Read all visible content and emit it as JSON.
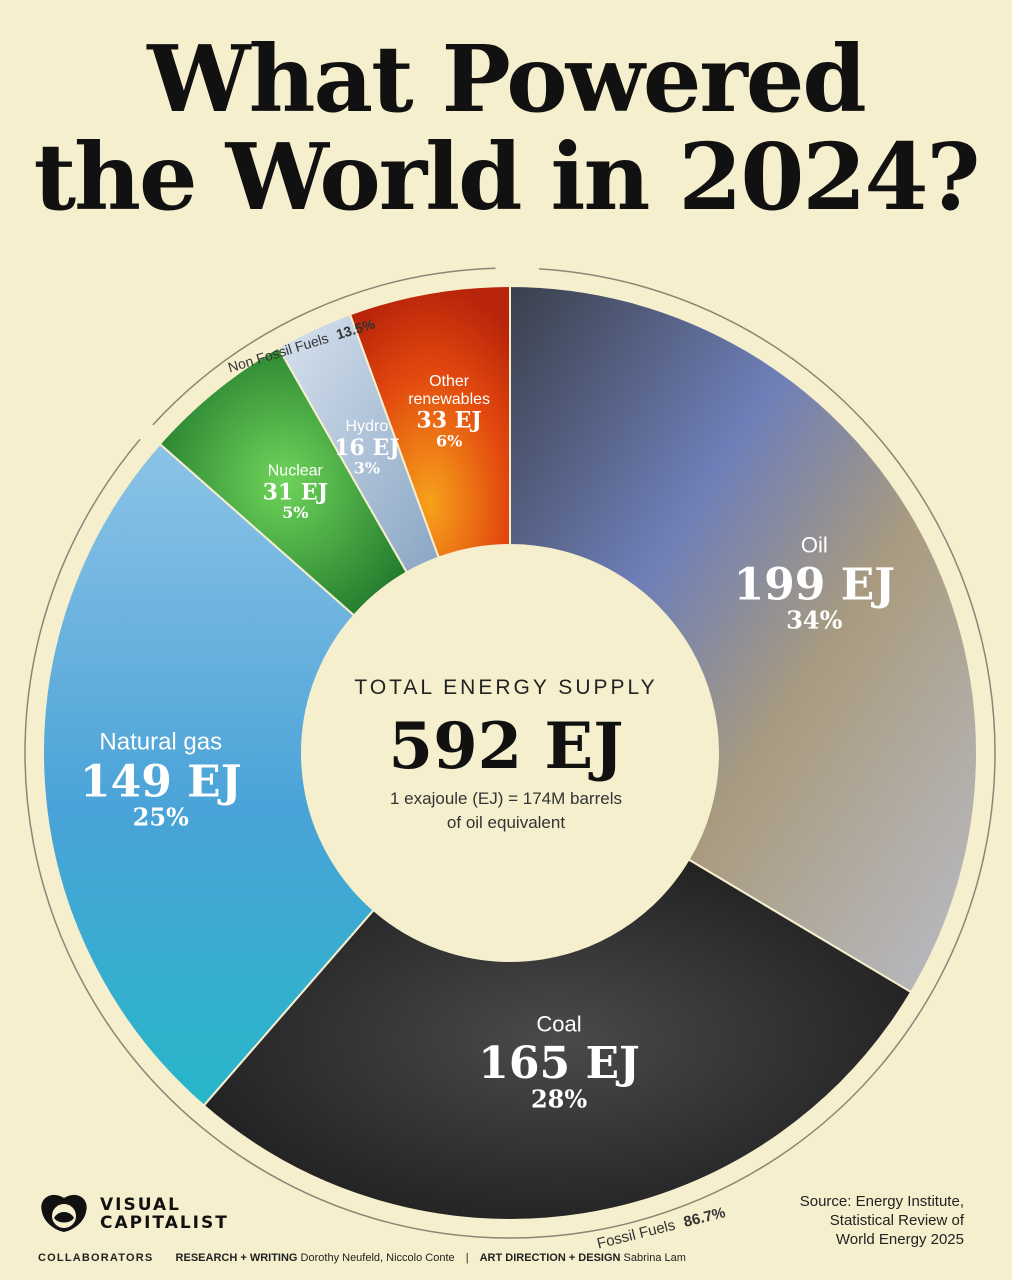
{
  "title": {
    "line1": "What Powered",
    "line2": "the World in 2024?"
  },
  "center": {
    "heading": "TOTAL ENERGY SUPPLY",
    "total": "592 EJ",
    "note_line1": "1 exajoule (EJ) = 174M barrels",
    "note_line2": "of oil equivalent"
  },
  "groups": {
    "non_fossil": {
      "label": "Non Fossil Fuels",
      "value": "13.5%"
    },
    "fossil": {
      "label": "Fossil Fuels",
      "value": "86.7%"
    }
  },
  "chart_data": {
    "type": "pie",
    "title": "What Powered the World in 2024?",
    "unit": "EJ",
    "total": 592,
    "slices": [
      {
        "name": "Oil",
        "value": 199,
        "value_label": "199 EJ",
        "percent_label": "34%",
        "color": "#8e8fa8"
      },
      {
        "name": "Coal",
        "value": 165,
        "value_label": "165 EJ",
        "percent_label": "28%",
        "color": "#2b2b2b"
      },
      {
        "name": "Natural gas",
        "value": 149,
        "value_label": "149 EJ",
        "percent_label": "25%",
        "color": "#4aa6d6"
      },
      {
        "name": "Nuclear",
        "value": 31,
        "value_label": "31 EJ",
        "percent_label": "5%",
        "color": "#2f9a3c"
      },
      {
        "name": "Hydro",
        "value": 16,
        "value_label": "16 EJ",
        "percent_label": "3%",
        "color": "#a9c3da"
      },
      {
        "name": "Other renewables",
        "label_line1": "Other",
        "label_line2": "renewables",
        "value": 33,
        "value_label": "33 EJ",
        "percent_label": "6%",
        "color": "#e85a10"
      }
    ]
  },
  "branding": {
    "logo_line1": "VISUAL",
    "logo_line2": "CAPITALIST"
  },
  "credits": {
    "collaborators": "COLLABORATORS",
    "research_label": "RESEARCH + WRITING",
    "research_names": "Dorothy Neufeld, Niccolo Conte",
    "art_label": "ART DIRECTION + DESIGN",
    "art_names": "Sabrina Lam"
  },
  "source": {
    "line1": "Source: Energy Institute,",
    "line2": "Statistical Review of",
    "line3": "World Energy 2025"
  }
}
